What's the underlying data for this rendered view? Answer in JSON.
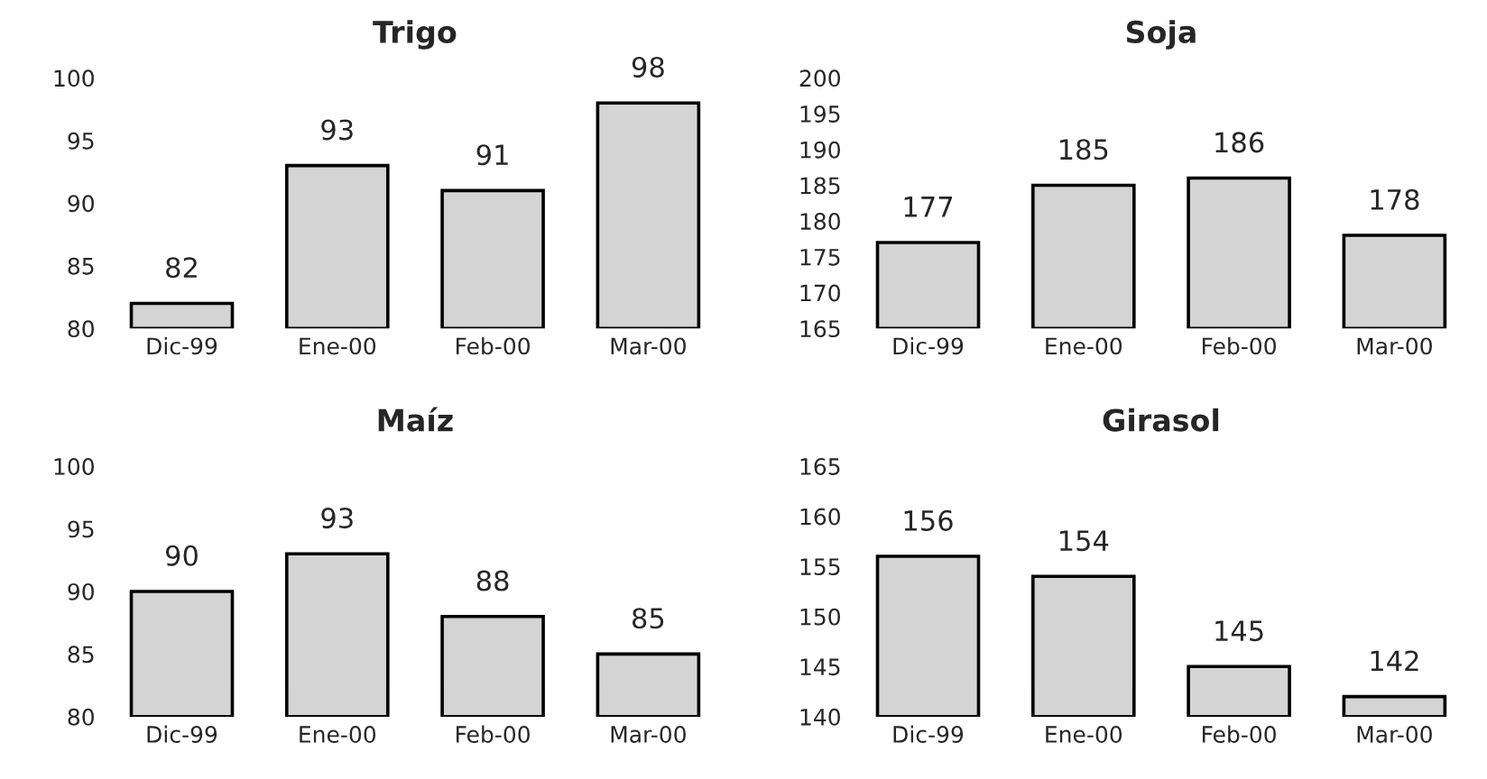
{
  "chart_data": [
    {
      "type": "bar",
      "title": "Trigo",
      "categories": [
        "Dic-99",
        "Ene-00",
        "Feb-00",
        "Mar-00"
      ],
      "values": [
        82,
        93,
        91,
        98
      ],
      "color": "#d4d4d4",
      "ylim": [
        80,
        100
      ],
      "yticks": [
        80,
        85,
        90,
        95,
        100
      ],
      "data_labels": true,
      "grid": false
    },
    {
      "type": "bar",
      "title": "Soja",
      "categories": [
        "Dic-99",
        "Ene-00",
        "Feb-00",
        "Mar-00"
      ],
      "values": [
        177,
        185,
        186,
        178
      ],
      "color": "#d4d4d4",
      "ylim": [
        165,
        200
      ],
      "yticks": [
        165,
        170,
        175,
        180,
        185,
        190,
        195,
        200
      ],
      "data_labels": true,
      "grid": false
    },
    {
      "type": "bar",
      "title": "Maíz",
      "categories": [
        "Dic-99",
        "Ene-00",
        "Feb-00",
        "Mar-00"
      ],
      "values": [
        90,
        93,
        88,
        85
      ],
      "color": "#d4d4d4",
      "ylim": [
        80,
        100
      ],
      "yticks": [
        80,
        85,
        90,
        95,
        100
      ],
      "data_labels": true,
      "grid": false
    },
    {
      "type": "bar",
      "title": "Girasol",
      "categories": [
        "Dic-99",
        "Ene-00",
        "Feb-00",
        "Mar-00"
      ],
      "values": [
        156,
        154,
        145,
        142
      ],
      "color": "#d4d4d4",
      "ylim": [
        140,
        165
      ],
      "yticks": [
        140,
        145,
        150,
        155,
        160,
        165
      ],
      "data_labels": true,
      "grid": false
    }
  ]
}
